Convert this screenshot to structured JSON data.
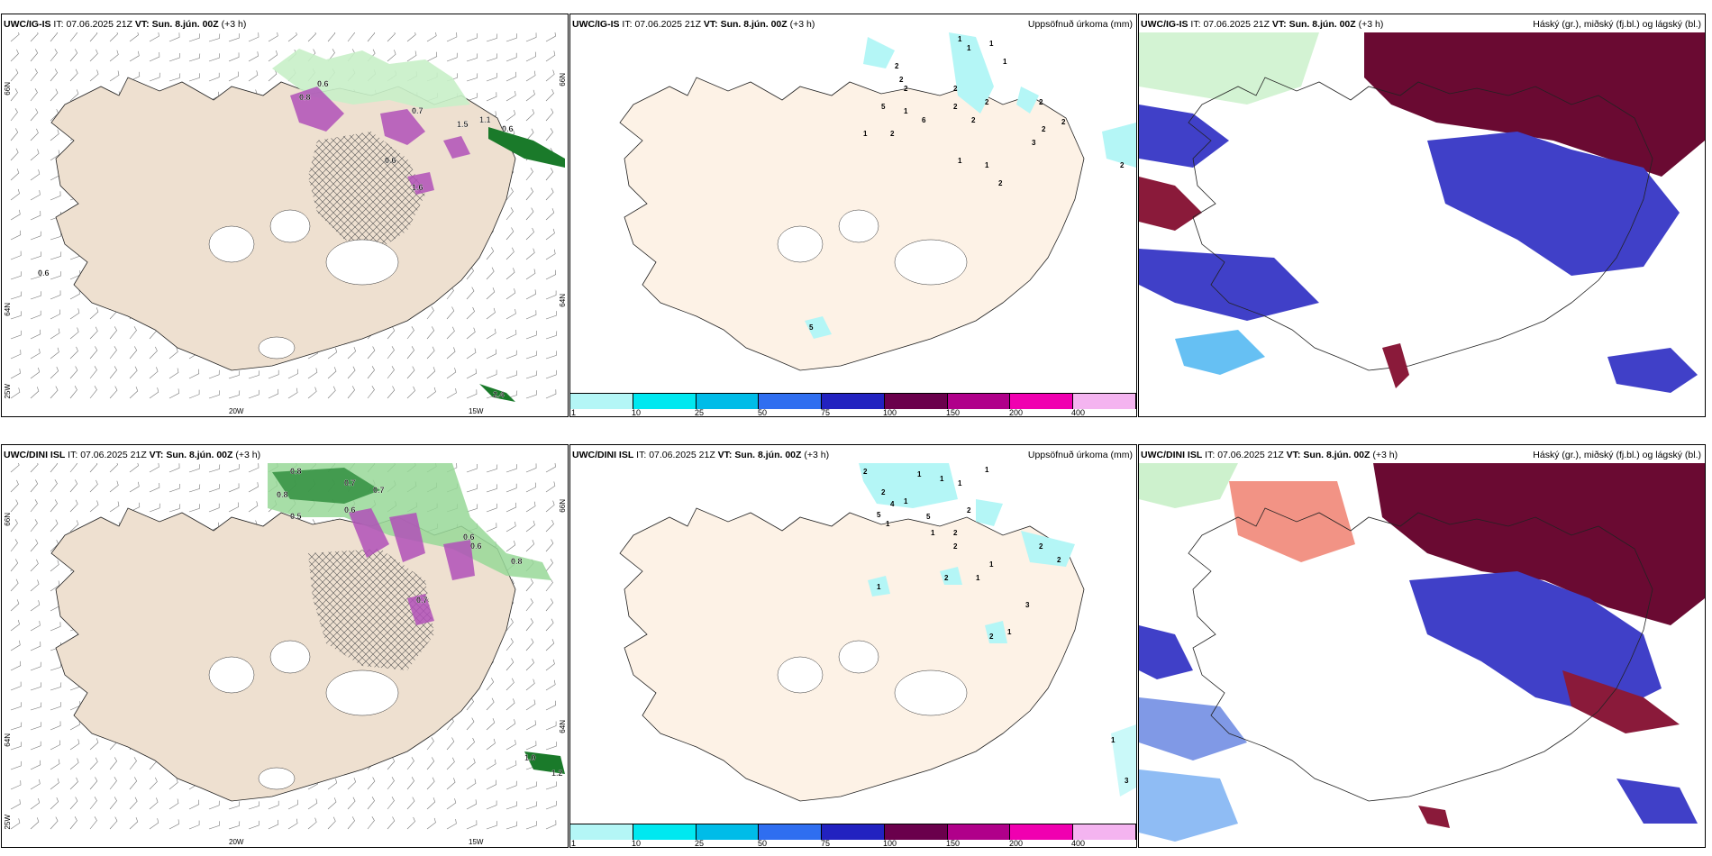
{
  "panels": {
    "p1": {
      "model": "UWC/IG-IS",
      "it_label": "IT:",
      "it": "07.06.2025 21Z",
      "vt_label": "VT:",
      "vt": "Sun. 8.jún. 00Z",
      "lead": "(+3 h)",
      "right_title": ""
    },
    "p2": {
      "model": "UWC/IG-IS",
      "it_label": "IT:",
      "it": "07.06.2025 21Z",
      "vt_label": "VT:",
      "vt": "Sun. 8.jún. 00Z",
      "lead": "(+3 h)",
      "right_title": "Uppsöfnuð úrkoma (mm)"
    },
    "p3": {
      "model": "UWC/IG-IS",
      "it_label": "IT:",
      "it": "07.06.2025 21Z",
      "vt_label": "VT:",
      "vt": "Sun. 8.jún. 00Z",
      "lead": "(+3 h)",
      "right_title": "Háský (gr.), miðský (fj.bl.) og lágský (bl.)"
    },
    "p4": {
      "model": "UWC/DINI ISL",
      "it_label": "IT:",
      "it": "07.06.2025 21Z",
      "vt_label": "VT:",
      "vt": "Sun. 8.jún. 00Z",
      "lead": "(+3 h)",
      "right_title": ""
    },
    "p5": {
      "model": "UWC/DINI ISL",
      "it_label": "IT:",
      "it": "07.06.2025 21Z",
      "vt_label": "VT:",
      "vt": "Sun. 8.jún. 00Z",
      "lead": "(+3 h)",
      "right_title": "Uppsöfnuð úrkoma (mm)"
    },
    "p6": {
      "model": "UWC/DINI ISL",
      "it_label": "IT:",
      "it": "07.06.2025 21Z",
      "vt_label": "VT:",
      "vt": "Sun. 8.jún. 00Z",
      "lead": "(+3 h)",
      "right_title": "Háský (gr.), miðský (fj.bl.) og lágský (bl.)"
    }
  },
  "grid_labels": {
    "lat_66": "66N",
    "lat_64": "64N",
    "lon_25": "25W",
    "lon_20": "20W",
    "lon_15": "15W"
  },
  "precip_legend": {
    "labels": [
      "1",
      "10",
      "25",
      "50",
      "75",
      "100",
      "150",
      "200",
      "400"
    ],
    "colors": [
      "#b4f6f6",
      "#00e8f0",
      "#00bce8",
      "#2f6ef0",
      "#2222c0",
      "#6a004c",
      "#b0008a",
      "#f000b0",
      "#f4b4f0"
    ]
  },
  "colors": {
    "land": "#eee0d0",
    "land_pale": "#fdf2e6",
    "sea": "#ffffff",
    "low_cloud": "#4040c8",
    "mid_cloud": "#6a0a32",
    "high_cloud": "#c8f0c8"
  },
  "precip_labels_p2": [
    "1",
    "1",
    "1",
    "1",
    "2",
    "2",
    "2",
    "2",
    "2",
    "5",
    "1",
    "6",
    "2",
    "2",
    "2",
    "1",
    "2",
    "3",
    "2",
    "2",
    "1",
    "1",
    "2",
    "2",
    "5"
  ],
  "precip_labels_p5": [
    "2",
    "1",
    "1",
    "1",
    "1",
    "2",
    "4",
    "1",
    "5",
    "5",
    "1",
    "1",
    "2",
    "2",
    "2",
    "2",
    "2",
    "2",
    "1",
    "1",
    "3",
    "1",
    "2",
    "1",
    "1",
    "3"
  ],
  "field_labels_p1": [
    "0.8",
    "0.6",
    "0.7",
    "1.1",
    "0.6",
    "1.5",
    "0.6",
    "0.6",
    "1.6",
    "2.4"
  ],
  "field_labels_p4": [
    "0.8",
    "0.7",
    "0.8",
    "0.7",
    "0.6",
    "0.5",
    "0.6",
    "0.6",
    "0.8",
    "0.7",
    "1.0",
    "1.2"
  ]
}
